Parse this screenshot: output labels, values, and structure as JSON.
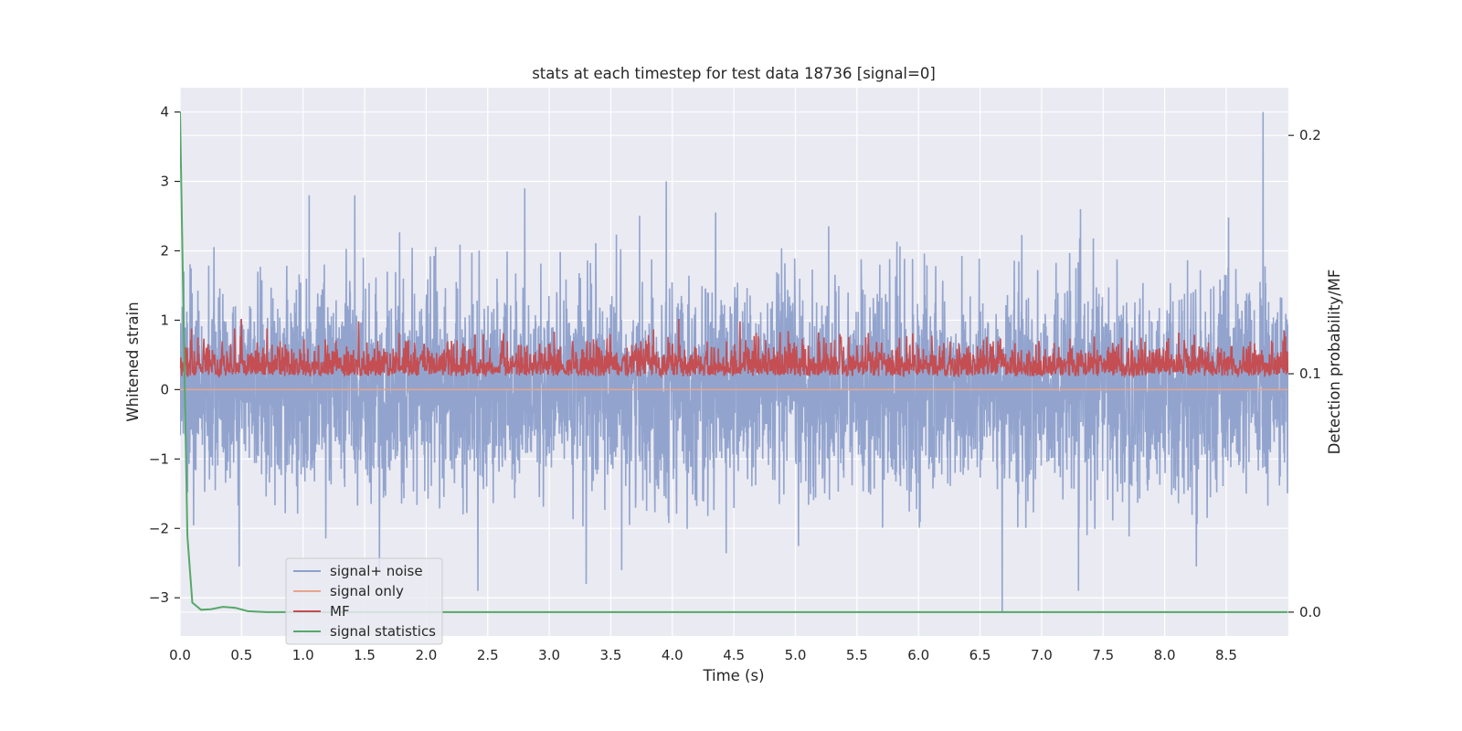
{
  "chart_data": {
    "type": "line",
    "title": "stats at each timestep for test data 18736 [signal=0]",
    "xlabel": "Time (s)",
    "ylabel": "Whitened strain",
    "y2label": "Detection probability/MF",
    "xlim": [
      0.0,
      9.0
    ],
    "ylim": [
      -3.55,
      4.35
    ],
    "y2lim": [
      -0.01,
      0.22
    ],
    "x_ticks": [
      "0.0",
      "0.5",
      "1.0",
      "1.5",
      "2.0",
      "2.5",
      "3.0",
      "3.5",
      "4.0",
      "4.5",
      "5.0",
      "5.5",
      "6.0",
      "6.5",
      "7.0",
      "7.5",
      "8.0",
      "8.5"
    ],
    "y_ticks": [
      "−3",
      "−2",
      "−1",
      "0",
      "1",
      "2",
      "3",
      "4"
    ],
    "y2_ticks": [
      "0.0",
      "0.1",
      "0.2"
    ],
    "grid": true,
    "legend_position": "lower left",
    "series": [
      {
        "name": "signal+ noise",
        "axis": "left",
        "color": "#8da0cb",
        "description_of_shape": "dense gaussian-like noise, roughly ±1 typical, spikes to ±3",
        "noise_std": 0.75,
        "peaks": [
          {
            "x": 0.03,
            "y": 1.7
          },
          {
            "x": 1.05,
            "y": 2.8
          },
          {
            "x": 1.42,
            "y": 2.8
          },
          {
            "x": 2.8,
            "y": 2.9
          },
          {
            "x": 3.95,
            "y": 3.0
          },
          {
            "x": 8.8,
            "y": 4.0
          },
          {
            "x": 2.42,
            "y": -2.9
          },
          {
            "x": 3.3,
            "y": -2.8
          },
          {
            "x": 6.68,
            "y": -3.2
          },
          {
            "x": 7.3,
            "y": -2.9
          },
          {
            "x": 1.62,
            "y": -2.6
          },
          {
            "x": 0.48,
            "y": -2.55
          }
        ]
      },
      {
        "name": "signal only",
        "axis": "left",
        "color": "#e8a58a",
        "values_constant": 0.0
      },
      {
        "name": "MF",
        "axis": "right",
        "color": "#c44e52",
        "baseline": 0.1,
        "range": [
          0.095,
          0.127
        ],
        "peaks": [
          {
            "x": 0.5,
            "y": 0.123
          },
          {
            "x": 1.45,
            "y": 0.122
          },
          {
            "x": 4.05,
            "y": 0.123
          },
          {
            "x": 4.55,
            "y": 0.122
          }
        ]
      },
      {
        "name": "signal statistics",
        "axis": "right",
        "color": "#55a868",
        "points": [
          {
            "x": 0.0,
            "y": 0.21
          },
          {
            "x": 0.03,
            "y": 0.12
          },
          {
            "x": 0.06,
            "y": 0.032
          },
          {
            "x": 0.1,
            "y": 0.004
          },
          {
            "x": 0.17,
            "y": 0.001
          },
          {
            "x": 0.25,
            "y": 0.0012
          },
          {
            "x": 0.35,
            "y": 0.0022
          },
          {
            "x": 0.45,
            "y": 0.0018
          },
          {
            "x": 0.55,
            "y": 0.0004
          },
          {
            "x": 0.7,
            "y": 0.0
          },
          {
            "x": 9.0,
            "y": 0.0
          }
        ]
      }
    ]
  }
}
